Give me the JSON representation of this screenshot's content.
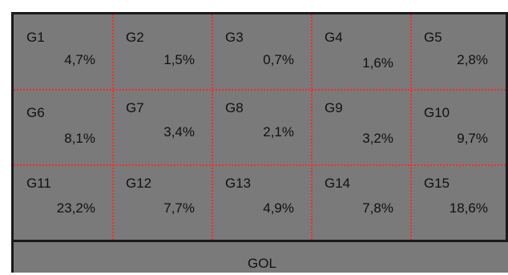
{
  "colors": {
    "background": "#7a7a7a",
    "border": "#1a1a1a",
    "divider": "#ff2a2a",
    "text": "#111111"
  },
  "grid": {
    "rows": [
      [
        {
          "label": "G1",
          "value": "4,7%"
        },
        {
          "label": "G2",
          "value": "1,5%"
        },
        {
          "label": "G3",
          "value": "0,7%"
        },
        {
          "label": "G4",
          "value": "1,6%"
        },
        {
          "label": "G5",
          "value": "2,8%"
        }
      ],
      [
        {
          "label": "G6",
          "value": "8,1%"
        },
        {
          "label": "G7",
          "value": "3,4%"
        },
        {
          "label": "G8",
          "value": "2,1%"
        },
        {
          "label": "G9",
          "value": "3,2%"
        },
        {
          "label": "G10",
          "value": "9,7%"
        }
      ],
      [
        {
          "label": "G11",
          "value": "23,2%"
        },
        {
          "label": "G12",
          "value": "7,7%"
        },
        {
          "label": "G13",
          "value": "4,9%"
        },
        {
          "label": "G14",
          "value": "7,8%"
        },
        {
          "label": "G15",
          "value": "18,6%"
        }
      ]
    ]
  },
  "goal_label": "GOL"
}
